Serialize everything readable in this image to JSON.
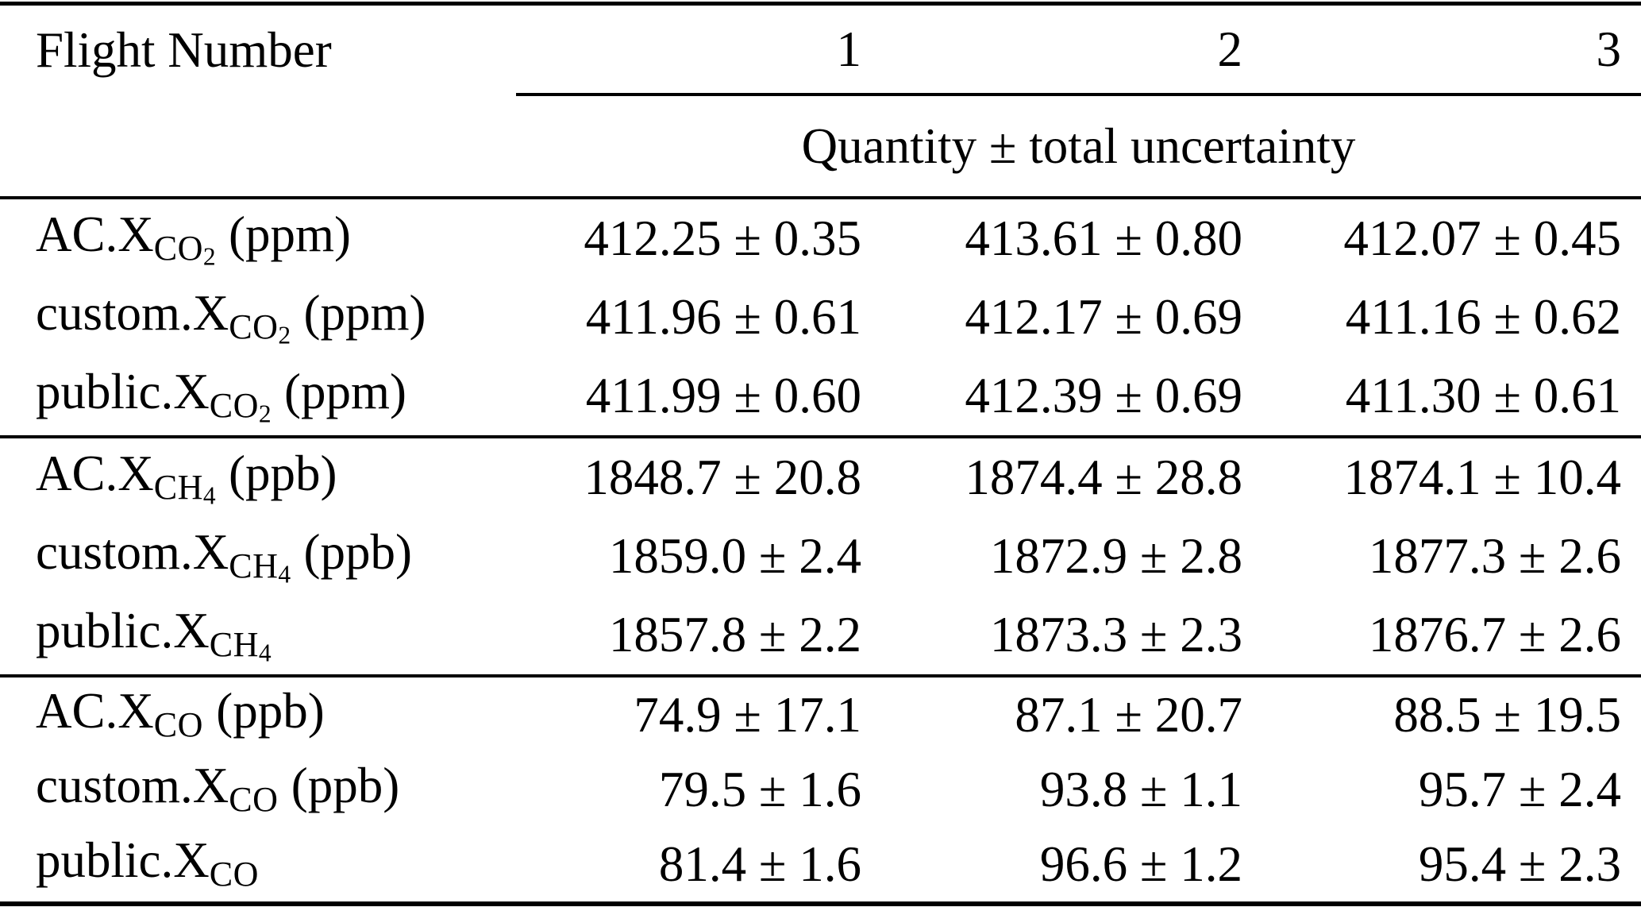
{
  "table": {
    "header": {
      "row_label": "Flight Number",
      "columns": [
        "1",
        "2",
        "3"
      ],
      "subheader": "Quantity ± total uncertainty"
    },
    "colors": {
      "background": "#ffffff",
      "text": "#000000",
      "rules": "#000000"
    },
    "sections": [
      {
        "name": "XCO2",
        "rows": [
          {
            "label": {
              "prefix": "AC.X",
              "sub": "CO",
              "subsub": "2",
              "unit": "(ppm)"
            },
            "values": [
              "412.25 ± 0.35",
              "413.61 ± 0.80",
              "412.07 ± 0.45"
            ]
          },
          {
            "label": {
              "prefix": "custom.X",
              "sub": "CO",
              "subsub": "2",
              "unit": "(ppm)"
            },
            "values": [
              "411.96 ± 0.61",
              "412.17 ± 0.69",
              "411.16 ± 0.62"
            ]
          },
          {
            "label": {
              "prefix": "public.X",
              "sub": "CO",
              "subsub": "2",
              "unit": "(ppm)"
            },
            "values": [
              "411.99 ± 0.60",
              "412.39 ± 0.69",
              "411.30 ± 0.61"
            ]
          }
        ]
      },
      {
        "name": "XCH4",
        "rows": [
          {
            "label": {
              "prefix": "AC.X",
              "sub": "CH",
              "subsub": "4",
              "unit": "(ppb)"
            },
            "values": [
              "1848.7 ± 20.8",
              "1874.4 ± 28.8",
              "1874.1 ± 10.4"
            ]
          },
          {
            "label": {
              "prefix": "custom.X",
              "sub": "CH",
              "subsub": "4",
              "unit": "(ppb)"
            },
            "values": [
              "1859.0 ± 2.4",
              "1872.9 ± 2.8",
              "1877.3 ± 2.6"
            ]
          },
          {
            "label": {
              "prefix": "public.X",
              "sub": "CH",
              "subsub": "4"
            },
            "values": [
              "1857.8 ± 2.2",
              "1873.3 ± 2.3",
              "1876.7 ± 2.6"
            ]
          }
        ]
      },
      {
        "name": "XCO",
        "rows": [
          {
            "label": {
              "prefix": "AC.X",
              "sub": "CO",
              "unit": "(ppb)"
            },
            "values": [
              "74.9 ± 17.1",
              "87.1 ± 20.7",
              "88.5 ± 19.5"
            ]
          },
          {
            "label": {
              "prefix": "custom.X",
              "sub": "CO",
              "unit": "(ppb)"
            },
            "values": [
              "79.5 ± 1.6",
              "93.8 ± 1.1",
              "95.7 ± 2.4"
            ]
          },
          {
            "label": {
              "prefix": "public.X",
              "sub": "CO"
            },
            "values": [
              "81.4 ± 1.6",
              "96.6 ± 1.2",
              "95.4 ± 2.3"
            ]
          }
        ]
      }
    ]
  }
}
